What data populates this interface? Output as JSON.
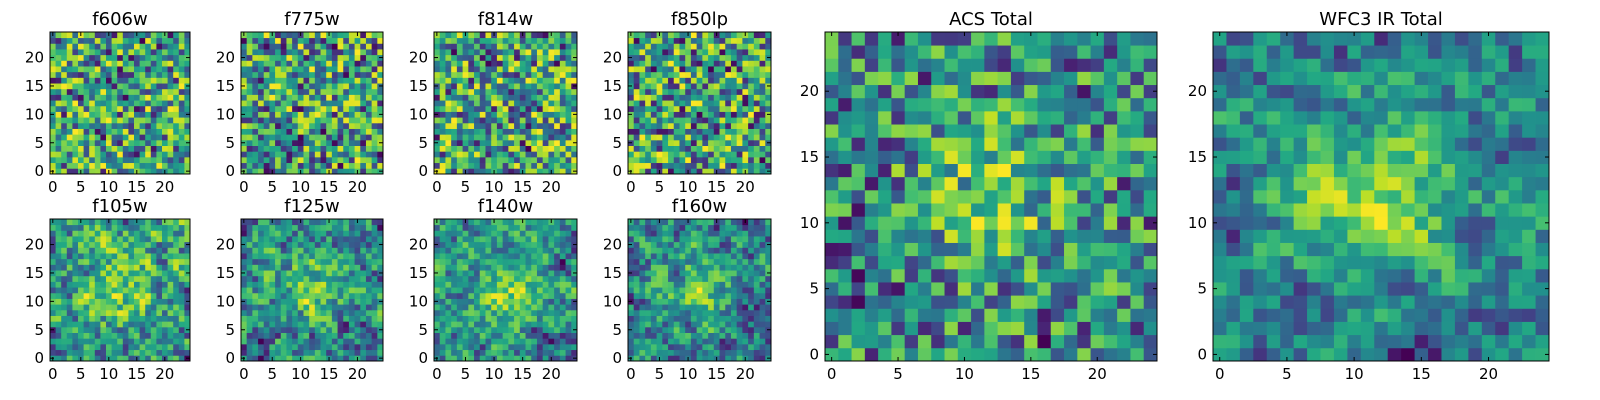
{
  "figure": {
    "description_colormap": "viridis",
    "grid": false
  },
  "chart_data": [
    {
      "type": "heatmap",
      "title": "f606w",
      "xlim": [
        0,
        24
      ],
      "ylim": [
        0,
        24
      ],
      "grid_size": 25,
      "xticks": [
        0,
        5,
        10,
        15,
        20
      ],
      "yticks": [
        0,
        5,
        10,
        15,
        20
      ],
      "seed": 11,
      "smooth": 0,
      "bias": 0.25,
      "blob": 0.0,
      "contrast": 1.0,
      "xlabel": "",
      "ylabel": ""
    },
    {
      "type": "heatmap",
      "title": "f775w",
      "xlim": [
        0,
        24
      ],
      "ylim": [
        0,
        24
      ],
      "grid_size": 25,
      "xticks": [
        0,
        5,
        10,
        15,
        20
      ],
      "yticks": [
        0,
        5,
        10,
        15,
        20
      ],
      "seed": 23,
      "smooth": 0,
      "bias": 0.2,
      "blob": 0.0,
      "contrast": 1.0,
      "xlabel": "",
      "ylabel": ""
    },
    {
      "type": "heatmap",
      "title": "f814w",
      "xlim": [
        0,
        24
      ],
      "ylim": [
        0,
        24
      ],
      "grid_size": 25,
      "xticks": [
        0,
        5,
        10,
        15,
        20
      ],
      "yticks": [
        0,
        5,
        10,
        15,
        20
      ],
      "seed": 37,
      "smooth": 0,
      "bias": 0.15,
      "blob": 0.0,
      "contrast": 1.0,
      "xlabel": "",
      "ylabel": ""
    },
    {
      "type": "heatmap",
      "title": "f850lp",
      "xlim": [
        0,
        24
      ],
      "ylim": [
        0,
        24
      ],
      "grid_size": 25,
      "xticks": [
        0,
        5,
        10,
        15,
        20
      ],
      "yticks": [
        0,
        5,
        10,
        15,
        20
      ],
      "seed": 41,
      "smooth": 0,
      "bias": 0.15,
      "blob": 0.0,
      "contrast": 1.0,
      "xlabel": "",
      "ylabel": ""
    },
    {
      "type": "heatmap",
      "title": "f105w",
      "xlim": [
        0,
        24
      ],
      "ylim": [
        0,
        24
      ],
      "grid_size": 25,
      "xticks": [
        0,
        5,
        10,
        15,
        20
      ],
      "yticks": [
        0,
        5,
        10,
        15,
        20
      ],
      "seed": 53,
      "smooth": 1,
      "bias": 0.1,
      "blob": 0.2,
      "contrast": 1.3,
      "xlabel": "",
      "ylabel": ""
    },
    {
      "type": "heatmap",
      "title": "f125w",
      "xlim": [
        0,
        24
      ],
      "ylim": [
        0,
        24
      ],
      "grid_size": 25,
      "xticks": [
        0,
        5,
        10,
        15,
        20
      ],
      "yticks": [
        0,
        5,
        10,
        15,
        20
      ],
      "seed": 67,
      "smooth": 1,
      "bias": 0.25,
      "blob": 0.25,
      "contrast": 1.3,
      "xlabel": "",
      "ylabel": ""
    },
    {
      "type": "heatmap",
      "title": "f140w",
      "xlim": [
        0,
        24
      ],
      "ylim": [
        0,
        24
      ],
      "grid_size": 25,
      "xticks": [
        0,
        5,
        10,
        15,
        20
      ],
      "yticks": [
        0,
        5,
        10,
        15,
        20
      ],
      "seed": 79,
      "smooth": 1,
      "bias": 0.05,
      "blob": 0.35,
      "contrast": 1.3,
      "xlabel": "",
      "ylabel": ""
    },
    {
      "type": "heatmap",
      "title": "f160w",
      "xlim": [
        0,
        24
      ],
      "ylim": [
        0,
        24
      ],
      "grid_size": 25,
      "xticks": [
        0,
        5,
        10,
        15,
        20
      ],
      "yticks": [
        0,
        5,
        10,
        15,
        20
      ],
      "seed": 83,
      "smooth": 1,
      "bias": 0.05,
      "blob": 0.3,
      "contrast": 1.3,
      "xlabel": "",
      "ylabel": ""
    },
    {
      "type": "heatmap",
      "title": "ACS Total",
      "xlim": [
        0,
        24
      ],
      "ylim": [
        0,
        24
      ],
      "grid_size": 25,
      "xticks": [
        0,
        5,
        10,
        15,
        20
      ],
      "yticks": [
        0,
        5,
        10,
        15,
        20
      ],
      "seed": 97,
      "smooth": 0,
      "bias": 0.05,
      "blob": 0.35,
      "contrast": 1.1,
      "xlabel": "",
      "ylabel": ""
    },
    {
      "type": "heatmap",
      "title": "WFC3 IR Total",
      "xlim": [
        0,
        24
      ],
      "ylim": [
        0,
        24
      ],
      "grid_size": 25,
      "xticks": [
        0,
        5,
        10,
        15,
        20
      ],
      "yticks": [
        0,
        5,
        10,
        15,
        20
      ],
      "seed": 101,
      "smooth": 1,
      "bias": 0.0,
      "blob": 0.5,
      "contrast": 1.3,
      "xlabel": "",
      "ylabel": ""
    }
  ]
}
